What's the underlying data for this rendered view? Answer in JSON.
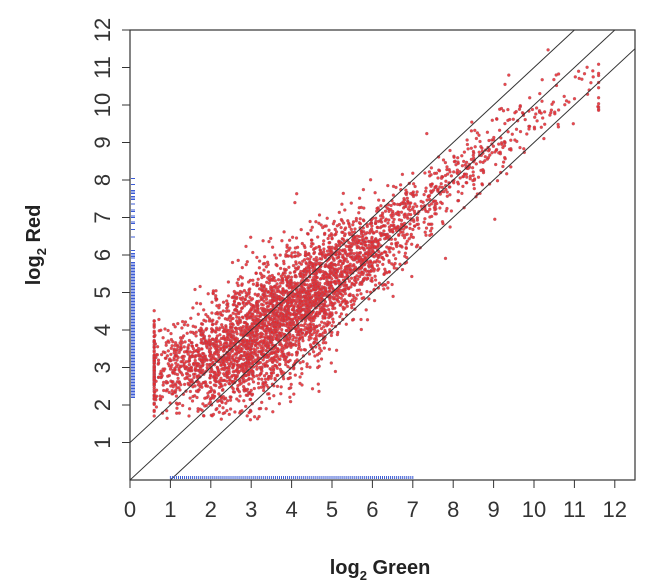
{
  "chart_data": {
    "type": "scatter",
    "xlabel_main": "log",
    "xlabel_sub": "2",
    "xlabel_rest": " Green",
    "ylabel_main": "log",
    "ylabel_sub": "2",
    "ylabel_rest": " Red",
    "xlim": [
      0,
      12.5
    ],
    "ylim": [
      0,
      12
    ],
    "xticks": [
      "0",
      "1",
      "2",
      "3",
      "4",
      "5",
      "6",
      "7",
      "8",
      "9",
      "10",
      "11",
      "12"
    ],
    "yticks": [
      "1",
      "2",
      "3",
      "4",
      "5",
      "6",
      "7",
      "8",
      "9",
      "10",
      "11",
      "12"
    ],
    "grid": false,
    "point_color": "#e8282a",
    "point_edge_color": "#a05a6e",
    "rug_color": "#3b5bd6",
    "line_color": "#333333",
    "cloud_summary": [
      {
        "x": 1.0,
        "y_center": 3.0,
        "y_spread": 0.55
      },
      {
        "x": 2.0,
        "y_center": 3.2,
        "y_spread": 0.75
      },
      {
        "x": 3.0,
        "y_center": 3.7,
        "y_spread": 0.85
      },
      {
        "x": 4.0,
        "y_center": 4.5,
        "y_spread": 0.85
      },
      {
        "x": 5.0,
        "y_center": 5.3,
        "y_spread": 0.75
      },
      {
        "x": 6.0,
        "y_center": 6.2,
        "y_spread": 0.6
      },
      {
        "x": 7.0,
        "y_center": 7.1,
        "y_spread": 0.5
      },
      {
        "x": 8.0,
        "y_center": 8.0,
        "y_spread": 0.45
      },
      {
        "x": 9.0,
        "y_center": 8.9,
        "y_spread": 0.4
      },
      {
        "x": 10.0,
        "y_center": 9.7,
        "y_spread": 0.4
      },
      {
        "x": 11.0,
        "y_center": 10.4,
        "y_spread": 0.4
      }
    ],
    "reference_lines": [
      {
        "intercept": 1,
        "slope": 1
      },
      {
        "intercept": 0,
        "slope": 1
      },
      {
        "intercept": -1,
        "slope": 1
      }
    ],
    "rug_y_range": [
      2.2,
      8.1
    ],
    "rug_x_range": [
      1.0,
      7.0
    ]
  }
}
